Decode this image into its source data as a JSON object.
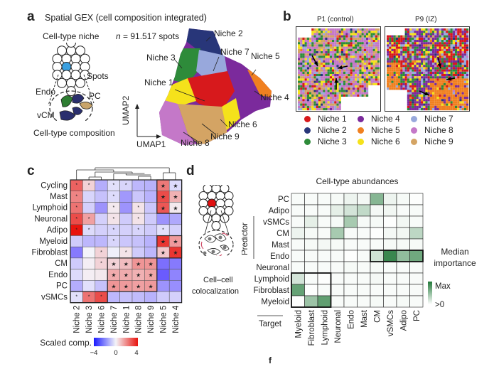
{
  "panel_a": {
    "label": "a",
    "title": "Spatial GEX (cell composition integrated)",
    "niche_label": "Cell-type niche",
    "n_label": "n",
    "n_value": "= 91.517 spots",
    "spots_label": "Spots",
    "endo_label": "Endo",
    "pc_label": "PC",
    "vcm_label": "vCM",
    "composition_label": "Cell-type composition",
    "umap1": "UMAP1",
    "umap2": "UMAP2",
    "niche_annotations": [
      "Niche 1",
      "Niche 2",
      "Niche 3",
      "Niche 4",
      "Niche 5",
      "Niche 6",
      "Niche 7",
      "Niche 8",
      "Niche 9"
    ]
  },
  "panel_b": {
    "label": "b",
    "titles": [
      "P1 (control)",
      "P9 (IZ)"
    ]
  },
  "panel_c": {
    "label": "c"
  },
  "panel_d": {
    "label": "d",
    "illustration_label_1": "Cell–cell",
    "illustration_label_2": "colocalization",
    "stray_label": "f"
  },
  "chart_data": [
    {
      "id": "niche_legend",
      "type": "scatter",
      "title": "Spatial GEX (cell composition integrated)",
      "xlabel": "UMAP1",
      "ylabel": "UMAP2",
      "n_spots": "91.517",
      "legend": [
        {
          "name": "Niche 1",
          "color": "#d7191c"
        },
        {
          "name": "Niche 2",
          "color": "#283679"
        },
        {
          "name": "Niche 3",
          "color": "#2e8b3a"
        },
        {
          "name": "Niche 4",
          "color": "#7b2a9c"
        },
        {
          "name": "Niche 5",
          "color": "#f08020"
        },
        {
          "name": "Niche 6",
          "color": "#f5e21b"
        },
        {
          "name": "Niche 7",
          "color": "#98a8dc"
        },
        {
          "name": "Niche 8",
          "color": "#c478c8"
        },
        {
          "name": "Niche 9",
          "color": "#d4a464"
        }
      ]
    },
    {
      "id": "scaled_composition_heatmap",
      "type": "heatmap",
      "rows": [
        "Cycling",
        "Mast",
        "Lymphoid",
        "Neuronal",
        "Adipo",
        "Myeloid",
        "Fibroblast",
        "CM",
        "Endo",
        "PC",
        "vSMCs"
      ],
      "columns": [
        "Niche 2",
        "Niche 3",
        "Niche 6",
        "Niche 7",
        "Niche 1",
        "Niche 8",
        "Niche 9",
        "Niche 5",
        "Niche 4"
      ],
      "values": [
        [
          2.6,
          0.6,
          -1.4,
          -0.4,
          -0.6,
          -1.2,
          -1.3,
          2.2,
          -0.5
        ],
        [
          2.0,
          -0.6,
          -1.0,
          -0.5,
          -1.8,
          -0.9,
          -1.3,
          3.0,
          1.2
        ],
        [
          2.3,
          -0.7,
          -1.9,
          0.2,
          -1.9,
          0.3,
          -0.9,
          2.8,
          0.2
        ],
        [
          3.0,
          1.5,
          -0.7,
          0.3,
          -0.8,
          0.3,
          -0.8,
          -1.9,
          -1.5
        ],
        [
          4.0,
          -0.5,
          -0.7,
          -0.6,
          -0.7,
          -0.6,
          -0.8,
          -0.4,
          -0.7
        ],
        [
          -0.8,
          -1.2,
          -1.2,
          -0.6,
          -0.9,
          -1.0,
          -1.3,
          3.4,
          1.6
        ],
        [
          -2.4,
          0.0,
          0.6,
          -0.1,
          0.3,
          -0.8,
          -1.2,
          0.8,
          3.4
        ],
        [
          -0.8,
          0.1,
          0.6,
          0.6,
          1.0,
          1.7,
          1.7,
          -2.6,
          -2.4
        ],
        [
          -0.5,
          0.1,
          0.2,
          1.3,
          1.3,
          1.2,
          1.4,
          -3.0,
          -2.2
        ],
        [
          -1.4,
          -0.4,
          -1.0,
          1.7,
          1.6,
          1.5,
          1.6,
          -1.9,
          -2.0
        ],
        [
          -0.4,
          2.3,
          3.0,
          -1.2,
          -1.0,
          -1.1,
          -1.3,
          -0.8,
          -0.7
        ]
      ],
      "significance": [
        [
          "*",
          "*",
          "",
          "*",
          "*",
          "",
          "",
          "★",
          "★"
        ],
        [
          "*",
          "",
          "",
          "*",
          "",
          "",
          "",
          "★",
          "★"
        ],
        [
          "*",
          "",
          "",
          "*",
          "",
          "*",
          "",
          "★",
          "★"
        ],
        [
          "*",
          "*",
          "",
          "*",
          "",
          "*",
          "",
          "",
          ""
        ],
        [
          "*",
          "*",
          "",
          "*",
          "",
          "*",
          "",
          "*",
          ""
        ],
        [
          "",
          "",
          "",
          "*",
          "",
          "",
          "",
          "★",
          "★"
        ],
        [
          "",
          "",
          "*",
          "",
          "*",
          "",
          "",
          "★",
          "★"
        ],
        [
          "",
          "",
          "*",
          "★",
          "★",
          "★",
          "★",
          "",
          ""
        ],
        [
          "",
          "",
          "",
          "★",
          "★",
          "★",
          "★",
          "",
          ""
        ],
        [
          "",
          "",
          "",
          "★",
          "★",
          "★",
          "★",
          "",
          ""
        ],
        [
          "*",
          "*",
          "*",
          "",
          "",
          "",
          "",
          "",
          ""
        ]
      ],
      "colorbar": {
        "label": "Scaled comp.",
        "min": -4,
        "mid": 0,
        "max": 4,
        "low_color": "#1a1aff",
        "mid_color": "#f4f4f8",
        "high_color": "#e8140e",
        "ticks": [
          "−4",
          "0",
          "4"
        ]
      }
    },
    {
      "id": "median_importance_heatmap",
      "type": "heatmap",
      "title": "Cell-type abundances",
      "ylabel": "Predictor",
      "xlabel": "Target",
      "rows": [
        "PC",
        "Adipo",
        "vSMCs",
        "CM",
        "Mast",
        "Endo",
        "Neuronal",
        "Lymphoid",
        "Fibroblast",
        "Myeloid"
      ],
      "columns": [
        "Myeloid",
        "Fibroblast",
        "Lymphoid",
        "Neuronal",
        "Endo",
        "Mast",
        "CM",
        "vSMCs",
        "Adipo",
        "PC"
      ],
      "values": [
        [
          0.03,
          0.03,
          0.03,
          0.04,
          0.08,
          0.05,
          0.55,
          0.08,
          0.04,
          0.01
        ],
        [
          0.03,
          0.03,
          0.03,
          0.12,
          0.2,
          0.28,
          0.05,
          0.06,
          0.03,
          0.03
        ],
        [
          0.03,
          0.12,
          0.03,
          0.04,
          0.4,
          0.04,
          0.04,
          0.01,
          0.06,
          0.03
        ],
        [
          0.08,
          0.04,
          0.03,
          0.4,
          0.03,
          0.03,
          0.01,
          0.05,
          0.06,
          0.3
        ],
        [
          0.03,
          0.04,
          0.05,
          0.04,
          0.03,
          0.03,
          0.03,
          0.04,
          0.04,
          0.04
        ],
        [
          0.03,
          0.03,
          0.03,
          0.03,
          0.01,
          0.03,
          0.22,
          0.9,
          0.5,
          0.65
        ],
        [
          0.03,
          0.03,
          0.03,
          0.03,
          0.04,
          0.03,
          0.04,
          0.03,
          0.03,
          0.03
        ],
        [
          0.2,
          0.03,
          0.01,
          0.03,
          0.03,
          0.03,
          0.05,
          0.03,
          0.03,
          0.03
        ],
        [
          0.7,
          0.01,
          0.03,
          0.03,
          0.03,
          0.03,
          0.03,
          0.03,
          0.03,
          0.03
        ],
        [
          0.01,
          0.45,
          0.72,
          0.03,
          0.03,
          0.03,
          0.04,
          0.03,
          0.04,
          0.03
        ]
      ],
      "highlight_boxes": [
        {
          "rows": [
            "Endo"
          ],
          "columns": [
            "CM",
            "vSMCs",
            "Adipo",
            "PC"
          ]
        },
        {
          "rows": [
            "Lymphoid",
            "Fibroblast",
            "Myeloid"
          ],
          "columns": [
            "Myeloid",
            "Fibroblast",
            "Lymphoid"
          ]
        }
      ],
      "legend": {
        "title_line1": "Median",
        "title_line2": "importance",
        "max_label": "Max",
        "min_label": ">0",
        "max_color": "#237a3a",
        "min_color": "#ffffff"
      }
    }
  ]
}
